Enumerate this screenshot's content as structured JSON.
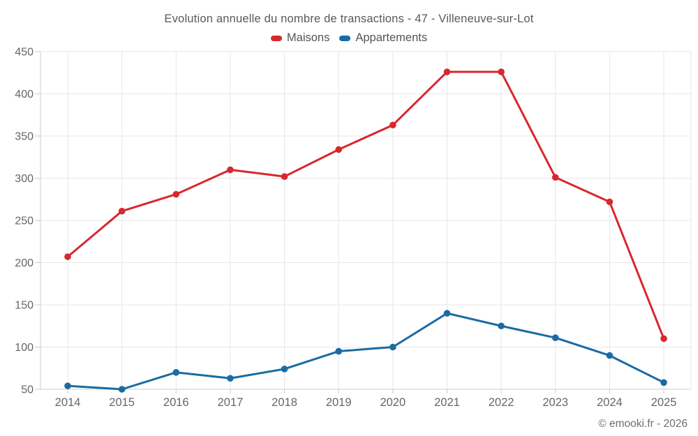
{
  "title": "Evolution annuelle du nombre de transactions - 47 - Villeneuve-sur-Lot",
  "footer": "© emooki.fr - 2026",
  "colors": {
    "maisons": "#d7282d",
    "appartements": "#1a6ba2",
    "grid": "#e7e7e7",
    "axis": "#cccccc",
    "tick_label": "#666666",
    "title_text": "#58595b"
  },
  "chart_data": {
    "type": "line",
    "title": "Evolution annuelle du nombre de transactions - 47 - Villeneuve-sur-Lot",
    "categories": [
      "2014",
      "2015",
      "2016",
      "2017",
      "2018",
      "2019",
      "2020",
      "2021",
      "2022",
      "2023",
      "2024",
      "2025"
    ],
    "series": [
      {
        "name": "Maisons",
        "color": "#d7282d",
        "values": [
          207,
          261,
          281,
          310,
          302,
          334,
          363,
          426,
          426,
          301,
          272,
          110
        ]
      },
      {
        "name": "Appartements",
        "color": "#1a6ba2",
        "values": [
          54,
          50,
          70,
          63,
          74,
          95,
          100,
          140,
          125,
          111,
          90,
          58
        ]
      }
    ],
    "xlabel": "",
    "ylabel": "",
    "ylim": [
      50,
      450
    ],
    "ytick_step": 50,
    "yticks": [
      450,
      400,
      350,
      300,
      250,
      200,
      150,
      100,
      50
    ],
    "grid": true,
    "legend_position": "top",
    "marker": "circle"
  }
}
